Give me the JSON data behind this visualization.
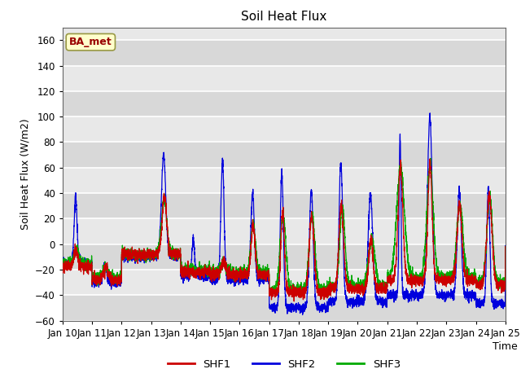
{
  "title": "Soil Heat Flux",
  "ylabel": "Soil Heat Flux (W/m2)",
  "xlabel": "Time",
  "ylim": [
    -60,
    170
  ],
  "yticks": [
    -60,
    -40,
    -20,
    0,
    20,
    40,
    60,
    80,
    100,
    120,
    140,
    160
  ],
  "num_days": 15,
  "points_per_day": 288,
  "colors": {
    "SHF1": "#cc0000",
    "SHF2": "#0000dd",
    "SHF3": "#00aa00"
  },
  "annotation_text": "BA_met",
  "annotation_bg": "#ffffcc",
  "annotation_border": "#999944",
  "fig_bg": "#ffffff",
  "plot_bg": "#e8e8e8",
  "grid_color": "#ffffff",
  "title_fontsize": 11,
  "label_fontsize": 9,
  "tick_fontsize": 8.5
}
